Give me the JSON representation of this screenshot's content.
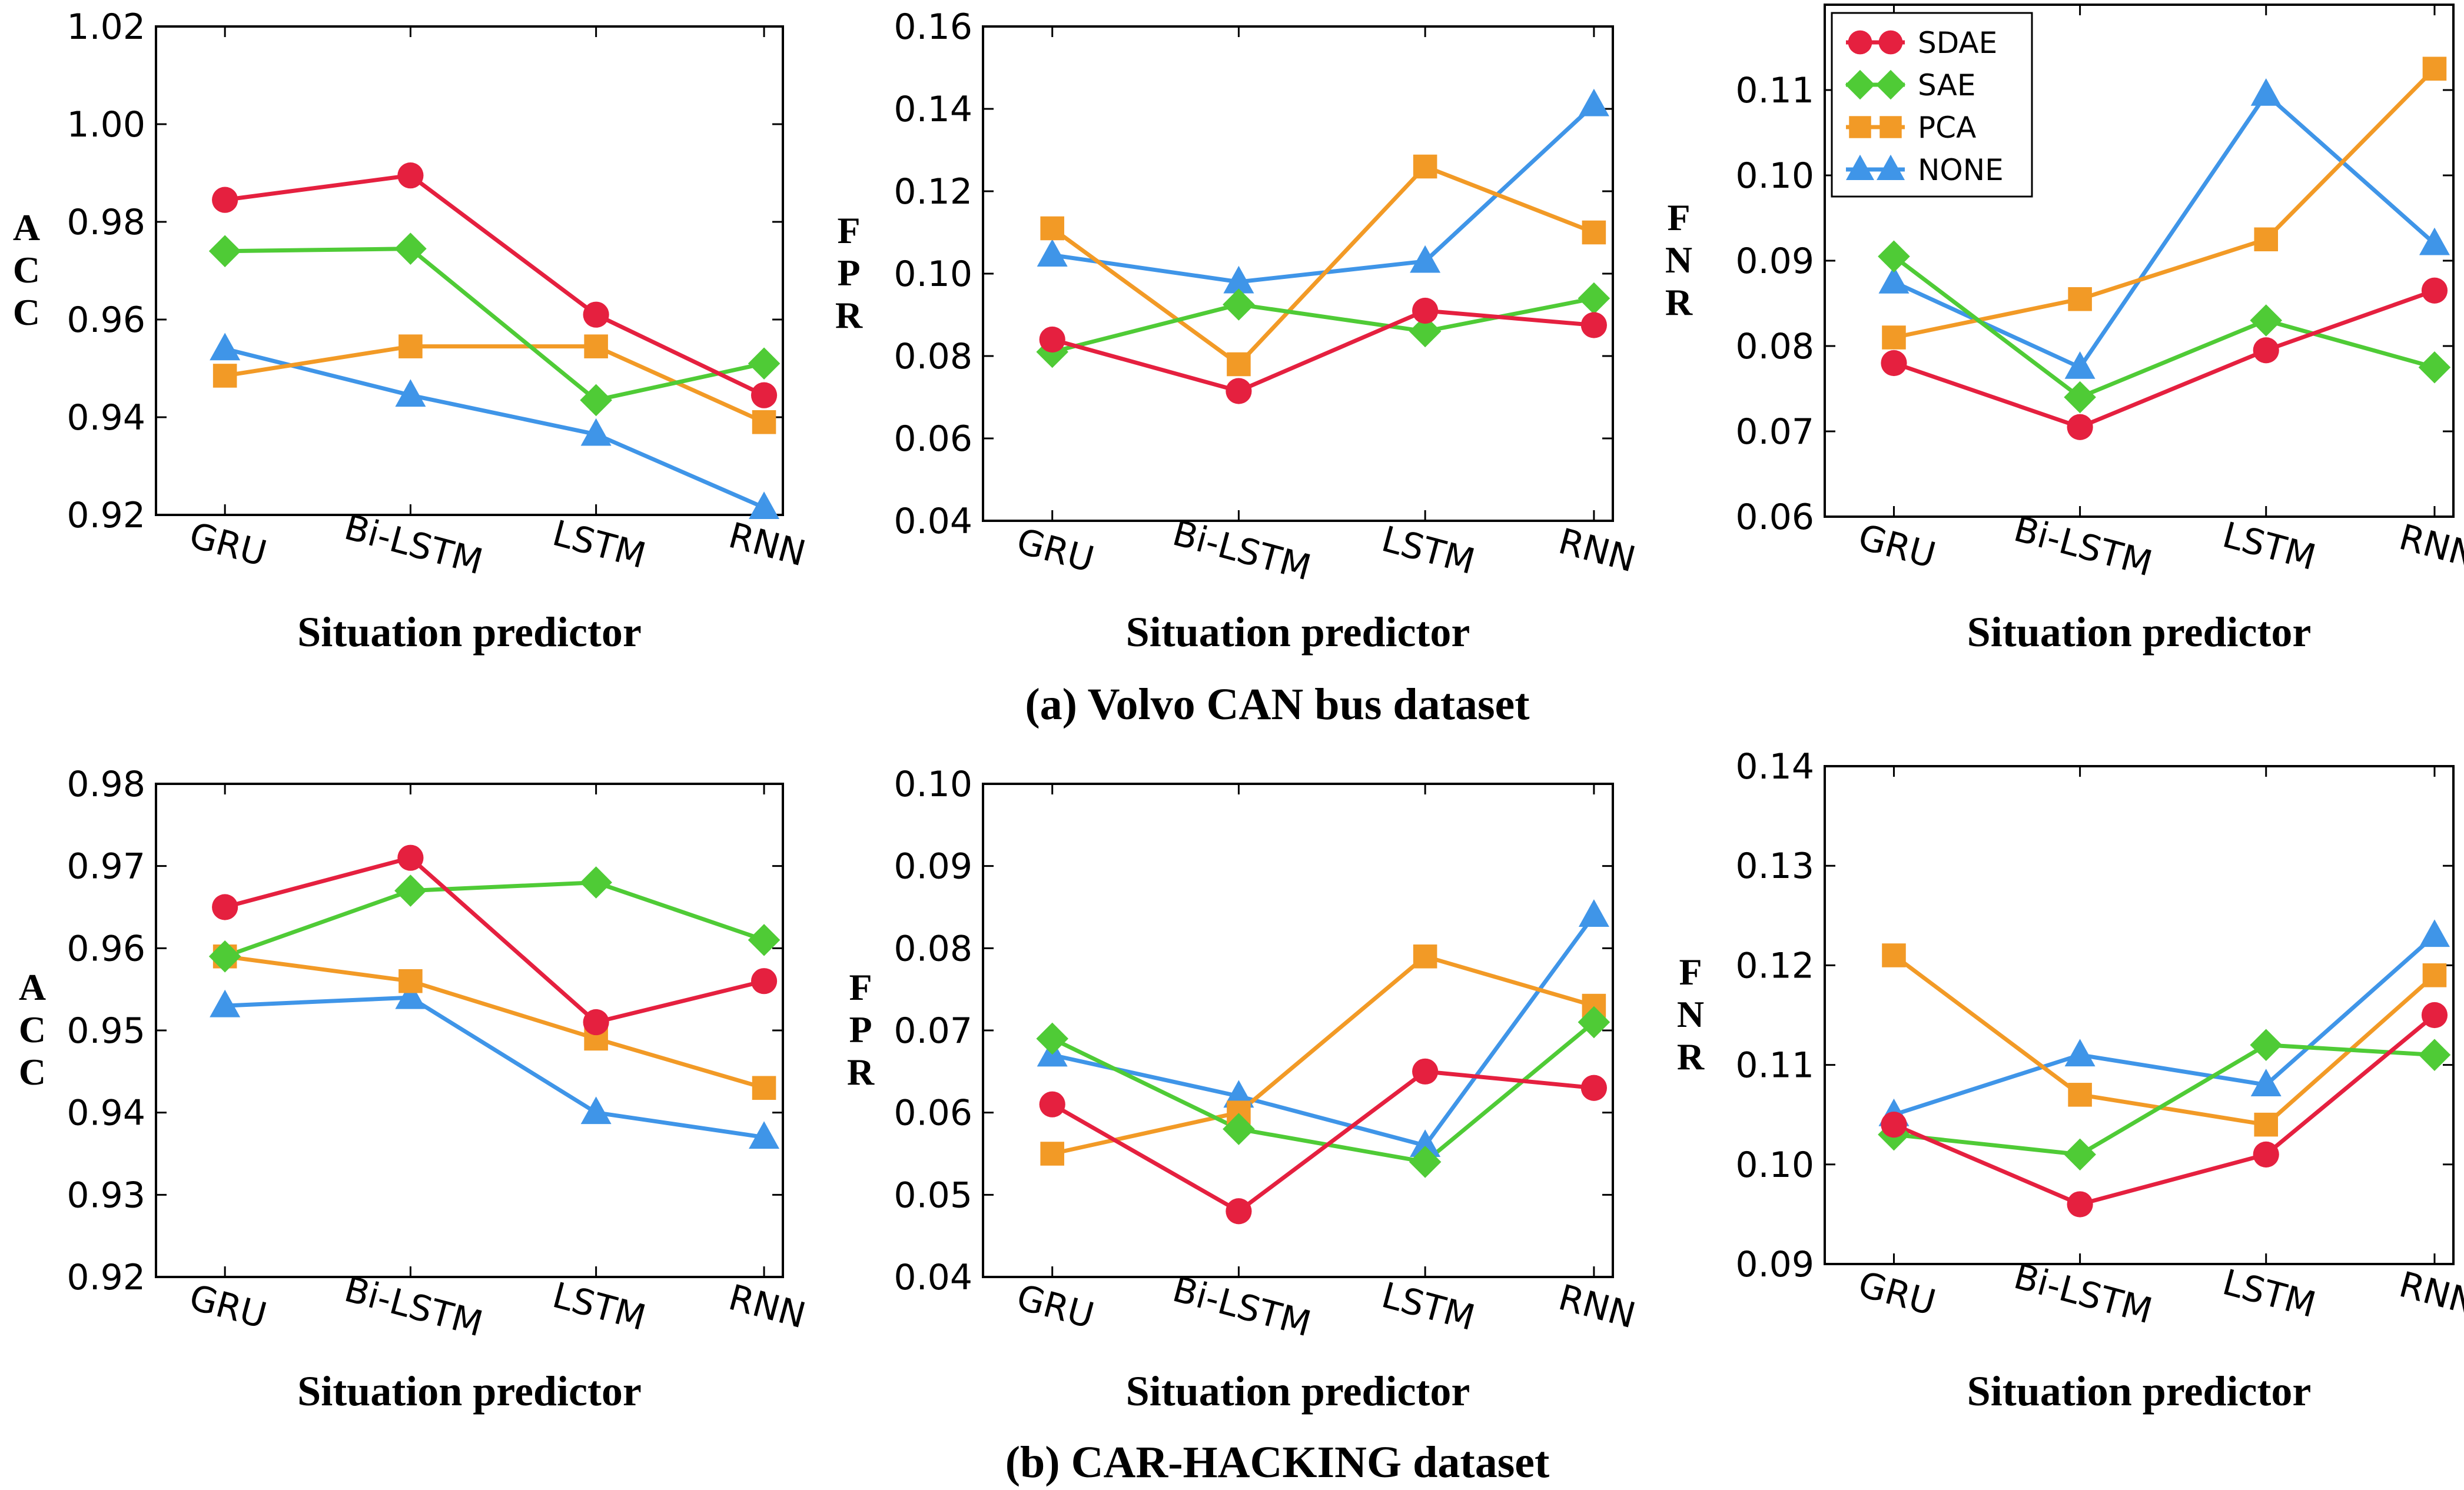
{
  "captions": {
    "a": "(a) Volvo CAN bus dataset",
    "b": "(b) CAR-HACKING dataset"
  },
  "colors": {
    "SDAE": "#e5203f",
    "SAE": "#4fcb36",
    "PCA": "#f29a26",
    "NONE": "#3f95e8"
  },
  "legend": {
    "labels": [
      "SDAE",
      "SAE",
      "PCA",
      "NONE"
    ],
    "markers": [
      "circle",
      "diamond",
      "square",
      "triangle"
    ]
  },
  "chart_data": [
    {
      "type": "line",
      "ylabel": "ACC",
      "xlabel": "Situation predictor",
      "categories": [
        "GRU",
        "Bi-LSTM",
        "LSTM",
        "RNN"
      ],
      "ylim": [
        0.92,
        1.02
      ],
      "yticks": [
        "0.92",
        "0.94",
        "0.96",
        "0.98",
        "1.00",
        "1.02"
      ],
      "series": [
        {
          "name": "SDAE",
          "values": [
            0.9845,
            0.9895,
            0.961,
            0.9445
          ]
        },
        {
          "name": "SAE",
          "values": [
            0.974,
            0.9745,
            0.9435,
            0.951
          ]
        },
        {
          "name": "PCA",
          "values": [
            0.9485,
            0.9545,
            0.9545,
            0.939
          ]
        },
        {
          "name": "NONE",
          "values": [
            0.954,
            0.9445,
            0.9365,
            0.9215
          ]
        }
      ]
    },
    {
      "type": "line",
      "ylabel": "FPR",
      "xlabel": "Situation predictor",
      "categories": [
        "GRU",
        "Bi-LSTM",
        "LSTM",
        "RNN"
      ],
      "ylim": [
        0.04,
        0.16
      ],
      "yticks": [
        "0.04",
        "0.06",
        "0.08",
        "0.10",
        "0.12",
        "0.14",
        "0.16"
      ],
      "series": [
        {
          "name": "SDAE",
          "values": [
            0.084,
            0.0715,
            0.091,
            0.0875
          ]
        },
        {
          "name": "SAE",
          "values": [
            0.081,
            0.0925,
            0.086,
            0.094
          ]
        },
        {
          "name": "PCA",
          "values": [
            0.111,
            0.078,
            0.126,
            0.11
          ]
        },
        {
          "name": "NONE",
          "values": [
            0.1045,
            0.098,
            0.103,
            0.141
          ]
        }
      ]
    },
    {
      "type": "line",
      "ylabel": "FNR",
      "xlabel": "Situation predictor",
      "categories": [
        "GRU",
        "Bi-LSTM",
        "LSTM",
        "RNN"
      ],
      "ylim": [
        0.06,
        0.12
      ],
      "yticks": [
        "0.06",
        "0.07",
        "0.08",
        "0.09",
        "0.10",
        "0.11"
      ],
      "legend": true,
      "series": [
        {
          "name": "SDAE",
          "values": [
            0.078,
            0.0705,
            0.0795,
            0.0865
          ]
        },
        {
          "name": "SAE",
          "values": [
            0.0905,
            0.074,
            0.083,
            0.0775
          ]
        },
        {
          "name": "PCA",
          "values": [
            0.081,
            0.0855,
            0.0925,
            0.1125
          ]
        },
        {
          "name": "NONE",
          "values": [
            0.0875,
            0.0775,
            0.1095,
            0.092
          ]
        }
      ]
    },
    {
      "type": "line",
      "ylabel": "ACC",
      "xlabel": "Situation predictor",
      "categories": [
        "GRU",
        "Bi-LSTM",
        "LSTM",
        "RNN"
      ],
      "ylim": [
        0.92,
        0.98
      ],
      "yticks": [
        "0.92",
        "0.93",
        "0.94",
        "0.95",
        "0.96",
        "0.97",
        "0.98"
      ],
      "series": [
        {
          "name": "SDAE",
          "values": [
            0.965,
            0.971,
            0.951,
            0.956
          ]
        },
        {
          "name": "SAE",
          "values": [
            0.959,
            0.967,
            0.968,
            0.961
          ]
        },
        {
          "name": "PCA",
          "values": [
            0.959,
            0.956,
            0.949,
            0.943
          ]
        },
        {
          "name": "NONE",
          "values": [
            0.953,
            0.954,
            0.94,
            0.937
          ]
        }
      ]
    },
    {
      "type": "line",
      "ylabel": "FPR",
      "xlabel": "Situation predictor",
      "categories": [
        "GRU",
        "Bi-LSTM",
        "LSTM",
        "RNN"
      ],
      "ylim": [
        0.04,
        0.1
      ],
      "yticks": [
        "0.04",
        "0.05",
        "0.06",
        "0.07",
        "0.08",
        "0.09",
        "0.10"
      ],
      "series": [
        {
          "name": "SDAE",
          "values": [
            0.061,
            0.048,
            0.065,
            0.063
          ]
        },
        {
          "name": "SAE",
          "values": [
            0.069,
            0.058,
            0.054,
            0.071
          ]
        },
        {
          "name": "PCA",
          "values": [
            0.055,
            0.06,
            0.079,
            0.073
          ]
        },
        {
          "name": "NONE",
          "values": [
            0.067,
            0.062,
            0.056,
            0.084
          ]
        }
      ]
    },
    {
      "type": "line",
      "ylabel": "FNR",
      "xlabel": "Situation predictor",
      "categories": [
        "GRU",
        "Bi-LSTM",
        "LSTM",
        "RNN"
      ],
      "ylim": [
        0.09,
        0.14
      ],
      "yticks": [
        "0.09",
        "0.10",
        "0.11",
        "0.12",
        "0.13",
        "0.14"
      ],
      "series": [
        {
          "name": "SDAE",
          "values": [
            0.104,
            0.096,
            0.101,
            0.115
          ]
        },
        {
          "name": "SAE",
          "values": [
            0.103,
            0.101,
            0.112,
            0.111
          ]
        },
        {
          "name": "PCA",
          "values": [
            0.121,
            0.107,
            0.104,
            0.119
          ]
        },
        {
          "name": "NONE",
          "values": [
            0.105,
            0.111,
            0.108,
            0.123
          ]
        }
      ]
    }
  ]
}
